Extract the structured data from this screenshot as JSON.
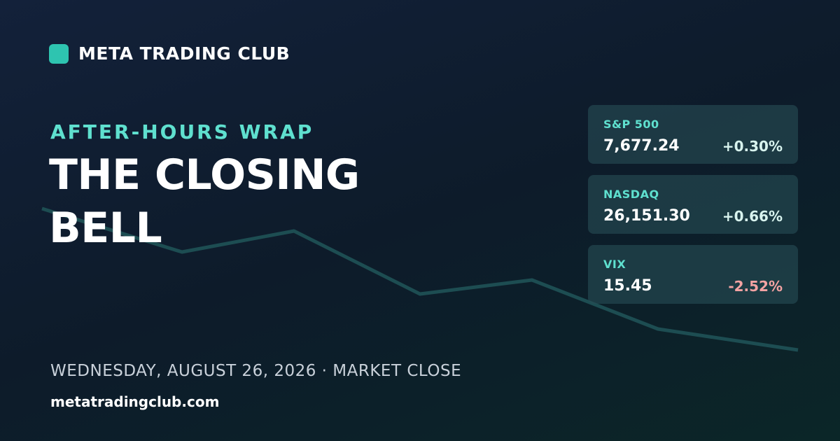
{
  "brand": "META TRADING CLUB",
  "eyebrow": "AFTER-HOURS WRAP",
  "title": "THE CLOSING BELL",
  "tickers": [
    {
      "name": "S&P 500",
      "value": "7,677.24",
      "change": "+0.30%"
    },
    {
      "name": "NASDAQ",
      "value": "26,151.30",
      "change": "+0.66%"
    },
    {
      "name": "VIX",
      "value": "15.45",
      "change": "-2.52%"
    }
  ],
  "date": "WEDNESDAY, AUGUST 26, 2026 · MARKET CLOSE",
  "url": "metatradingclub.com"
}
